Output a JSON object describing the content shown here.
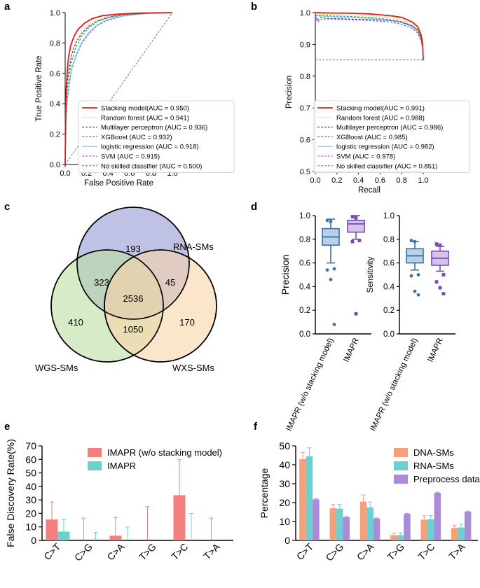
{
  "chart_data": [
    {
      "panel": "a",
      "type": "line",
      "xlabel": "False Positive Rate",
      "ylabel": "True Positive Rate",
      "xlim": [
        0,
        1
      ],
      "ylim": [
        0,
        1
      ],
      "xticks": [
        "0.0",
        "0.2",
        "0.4",
        "0.6",
        "0.8",
        "1.0"
      ],
      "yticks": [
        "0.0",
        "0.2",
        "0.4",
        "0.6",
        "0.8",
        "1.0"
      ],
      "legend_position": "lower-right",
      "series": [
        {
          "name": "Stacking model(AUC = 0.950)",
          "color": "#e41a1c",
          "style": "solid",
          "x": [
            0,
            0.005,
            0.01,
            0.02,
            0.03,
            0.05,
            0.08,
            0.12,
            0.18,
            0.25,
            0.35,
            0.5,
            0.7,
            1
          ],
          "y": [
            0,
            0.35,
            0.5,
            0.62,
            0.7,
            0.78,
            0.84,
            0.89,
            0.93,
            0.96,
            0.98,
            0.99,
            0.997,
            1
          ]
        },
        {
          "name": "Random forest (AUC = 0.941)",
          "color": "#e6c229",
          "style": "dotted",
          "x": [
            0,
            0.005,
            0.01,
            0.02,
            0.04,
            0.06,
            0.1,
            0.15,
            0.22,
            0.3,
            0.4,
            0.55,
            0.75,
            1
          ],
          "y": [
            0,
            0.3,
            0.45,
            0.57,
            0.66,
            0.74,
            0.81,
            0.87,
            0.92,
            0.95,
            0.975,
            0.99,
            0.997,
            1
          ]
        },
        {
          "name": "Multilayer perceptron (AUC = 0.936)",
          "color": "#2c2cc8",
          "style": "dashed",
          "x": [
            0,
            0.005,
            0.01,
            0.02,
            0.04,
            0.06,
            0.1,
            0.15,
            0.22,
            0.3,
            0.4,
            0.55,
            0.75,
            1
          ],
          "y": [
            0,
            0.28,
            0.42,
            0.55,
            0.64,
            0.72,
            0.8,
            0.86,
            0.91,
            0.945,
            0.97,
            0.988,
            0.996,
            1
          ]
        },
        {
          "name": "XGBoost (AUC = 0.932)",
          "color": "#2ca02c",
          "style": "dashed",
          "x": [
            0,
            0.005,
            0.01,
            0.02,
            0.04,
            0.06,
            0.1,
            0.15,
            0.22,
            0.3,
            0.4,
            0.55,
            0.75,
            1
          ],
          "y": [
            0,
            0.25,
            0.38,
            0.5,
            0.6,
            0.68,
            0.77,
            0.84,
            0.9,
            0.94,
            0.965,
            0.985,
            0.995,
            1
          ]
        },
        {
          "name": "logistic regression (AUC = 0.918)",
          "color": "#5fd3f3",
          "style": "solid",
          "x": [
            0,
            0.005,
            0.01,
            0.02,
            0.04,
            0.06,
            0.1,
            0.15,
            0.22,
            0.3,
            0.4,
            0.55,
            0.75,
            1
          ],
          "y": [
            0,
            0.2,
            0.32,
            0.44,
            0.55,
            0.63,
            0.72,
            0.8,
            0.87,
            0.92,
            0.955,
            0.98,
            0.994,
            1
          ]
        },
        {
          "name": "SVM (AUC = 0.915)",
          "color": "#c040c0",
          "style": "dashed",
          "x": [
            0,
            0.005,
            0.01,
            0.02,
            0.04,
            0.06,
            0.1,
            0.15,
            0.22,
            0.3,
            0.4,
            0.55,
            0.75,
            1
          ],
          "y": [
            0,
            0.18,
            0.3,
            0.42,
            0.53,
            0.62,
            0.71,
            0.79,
            0.86,
            0.915,
            0.95,
            0.978,
            0.993,
            1
          ]
        },
        {
          "name": "No skilled classifier (AUC = 0.500)",
          "color": "#808080",
          "style": "dashed",
          "x": [
            0,
            1
          ],
          "y": [
            0,
            1
          ]
        }
      ]
    },
    {
      "panel": "b",
      "type": "line",
      "xlabel": "Recall",
      "ylabel": "Precision",
      "xlim": [
        0,
        1
      ],
      "ylim": [
        0.5,
        1
      ],
      "xticks": [
        "0.0",
        "0.2",
        "0.4",
        "0.6",
        "0.8",
        "1.0"
      ],
      "yticks": [
        "0.5",
        "0.6",
        "0.7",
        "0.8",
        "0.9",
        "1.0"
      ],
      "legend_position": "lower-right",
      "series": [
        {
          "name": "Stacking model(AUC = 0.991)",
          "color": "#e41a1c",
          "style": "solid",
          "x": [
            0,
            0.1,
            0.3,
            0.5,
            0.7,
            0.8,
            0.9,
            0.95,
            0.98,
            0.995,
            1
          ],
          "y": [
            1,
            0.999,
            0.998,
            0.996,
            0.99,
            0.985,
            0.97,
            0.955,
            0.93,
            0.9,
            0.85
          ]
        },
        {
          "name": "Random forest (AUC = 0.988)",
          "color": "#e6c229",
          "style": "dotted",
          "x": [
            0,
            0.1,
            0.3,
            0.5,
            0.7,
            0.8,
            0.9,
            0.95,
            0.98,
            0.995,
            1
          ],
          "y": [
            0.995,
            0.994,
            0.993,
            0.99,
            0.985,
            0.978,
            0.963,
            0.948,
            0.925,
            0.895,
            0.85
          ]
        },
        {
          "name": "Multilayer perceptron (AUC = 0.986)",
          "color": "#2c2cc8",
          "style": "dashed",
          "x": [
            0,
            0.02,
            0.05,
            0.1,
            0.3,
            0.5,
            0.7,
            0.8,
            0.9,
            0.95,
            0.98,
            0.995,
            1
          ],
          "y": [
            0.995,
            0.975,
            0.985,
            0.982,
            0.98,
            0.978,
            0.975,
            0.97,
            0.958,
            0.945,
            0.92,
            0.89,
            0.85
          ]
        },
        {
          "name": "XGBoost (AUC = 0.985)",
          "color": "#2ca02c",
          "style": "dashed",
          "x": [
            0,
            0.1,
            0.3,
            0.5,
            0.7,
            0.8,
            0.9,
            0.95,
            0.98,
            0.995,
            1
          ],
          "y": [
            0.99,
            0.99,
            0.988,
            0.985,
            0.978,
            0.972,
            0.958,
            0.942,
            0.918,
            0.89,
            0.85
          ]
        },
        {
          "name": "logistic regression (AUC = 0.982)",
          "color": "#5fd3f3",
          "style": "solid",
          "x": [
            0,
            0.1,
            0.3,
            0.5,
            0.7,
            0.8,
            0.9,
            0.95,
            0.98,
            0.995,
            1
          ],
          "y": [
            0.99,
            0.988,
            0.985,
            0.982,
            0.975,
            0.968,
            0.955,
            0.94,
            0.915,
            0.888,
            0.85
          ]
        },
        {
          "name": "SVM (AUC = 0.978)",
          "color": "#c040c0",
          "style": "dashed",
          "x": [
            0,
            0.02,
            0.05,
            0.1,
            0.3,
            0.5,
            0.7,
            0.8,
            0.9,
            0.95,
            0.98,
            0.995,
            1
          ],
          "y": [
            0.99,
            0.97,
            0.978,
            0.98,
            0.978,
            0.975,
            0.97,
            0.963,
            0.95,
            0.935,
            0.91,
            0.885,
            0.85
          ]
        },
        {
          "name": "No skilled classifier (AUC = 0.851)",
          "color": "#808080",
          "style": "dashed",
          "x": [
            0,
            1
          ],
          "y": [
            0.851,
            0.851
          ]
        }
      ]
    },
    {
      "panel": "c",
      "type": "venn",
      "sets": [
        {
          "name": "RNA-SMs",
          "color": "#b4b6e0"
        },
        {
          "name": "WGS-SMs",
          "color": "#bde0a0"
        },
        {
          "name": "WXS-SMs",
          "color": "#f8d4a8"
        }
      ],
      "regions": {
        "rna_only": "193",
        "wgs_only": "410",
        "wxs_only": "170",
        "rna_wgs": "323",
        "rna_wxs": "45",
        "wgs_wxs": "1050",
        "all": "2536"
      }
    },
    {
      "panel": "d",
      "type": "box",
      "ylim": [
        0,
        1
      ],
      "yticks": [
        "0.0",
        "0.2",
        "0.4",
        "0.6",
        "0.8",
        "1.0"
      ],
      "subplots": [
        {
          "ylabel": "Precision",
          "boxes": [
            {
              "label": "IMAPR (w/o stacking model)",
              "color": "#3a6fb0",
              "fill": "#b8d0e8",
              "whisker_low": 0.6,
              "q1": 0.75,
              "median": 0.82,
              "q3": 0.89,
              "whisker_high": 0.97,
              "outliers": [
                0.96,
                0.95,
                0.55,
                0.54,
                0.46,
                0.08
              ]
            },
            {
              "label": "IMAPR",
              "color": "#7a4ab0",
              "fill": "#d4c4ea",
              "whisker_low": 0.8,
              "q1": 0.86,
              "median": 0.93,
              "q3": 0.96,
              "whisker_high": 1.0,
              "outliers": [
                0.99,
                0.98,
                0.79,
                0.78,
                0.17
              ]
            }
          ]
        },
        {
          "ylabel": "Sensitivity",
          "boxes": [
            {
              "label": "IMAPR (w/o stacking model)",
              "color": "#3a6fb0",
              "fill": "#b8d0e8",
              "whisker_low": 0.54,
              "q1": 0.6,
              "median": 0.66,
              "q3": 0.72,
              "whisker_high": 0.78,
              "outliers": [
                0.79,
                0.78,
                0.5,
                0.49,
                0.36,
                0.33
              ]
            },
            {
              "label": "IMAPR",
              "color": "#7a4ab0",
              "fill": "#d4c4ea",
              "whisker_low": 0.53,
              "q1": 0.58,
              "median": 0.64,
              "q3": 0.7,
              "whisker_high": 0.74,
              "outliers": [
                0.76,
                0.75,
                0.5,
                0.44,
                0.39,
                0.34
              ]
            }
          ]
        }
      ]
    },
    {
      "panel": "e",
      "type": "bar",
      "ylabel": "False Discovery Rate(%)",
      "ylim": [
        0,
        70
      ],
      "yticks": [
        "0",
        "10",
        "20",
        "30",
        "40",
        "50",
        "60",
        "70"
      ],
      "categories": [
        "C>T",
        "C>G",
        "C>A",
        "T>G",
        "T>C",
        "T>A"
      ],
      "legend_position": "top-right",
      "series": [
        {
          "name": "IMAPR (w/o stacking model)",
          "color": "#f47f7f",
          "values": [
            15.5,
            0,
            3.5,
            0,
            33.5,
            0
          ],
          "errors": [
            13,
            16.5,
            13.5,
            25,
            26.5,
            16.5
          ]
        },
        {
          "name": "IMAPR",
          "color": "#6dd0d0",
          "values": [
            6.5,
            0,
            0,
            0,
            0,
            0
          ],
          "errors": [
            9,
            6,
            10,
            0,
            20,
            0
          ]
        }
      ]
    },
    {
      "panel": "f",
      "type": "bar",
      "ylabel": "Percentage",
      "ylim": [
        0,
        50
      ],
      "yticks": [
        "0",
        "10",
        "20",
        "30",
        "40",
        "50"
      ],
      "categories": [
        "C>T",
        "C>G",
        "C>A",
        "T>G",
        "T>C",
        "T>A"
      ],
      "legend_position": "top-right",
      "series": [
        {
          "name": "DNA-SMs",
          "color": "#f4a07a",
          "values": [
            43,
            17,
            20.5,
            2.8,
            11,
            6.5
          ],
          "errors": [
            3.5,
            2,
            3.5,
            1,
            2,
            1.5
          ]
        },
        {
          "name": "RNA-SMs",
          "color": "#6dd0d0",
          "values": [
            44.5,
            16.8,
            17.5,
            2.8,
            11.2,
            6.8
          ],
          "errors": [
            4.5,
            2.2,
            2.8,
            1.2,
            2,
            1.8
          ]
        },
        {
          "name": "Preprocess data",
          "color": "#a98bd8",
          "values": [
            21.7,
            12.3,
            11.6,
            14,
            25.2,
            15.2
          ],
          "errors": [
            0.3,
            0.3,
            0.3,
            0.3,
            0.3,
            0.3
          ]
        }
      ]
    }
  ],
  "panel_labels": [
    "a",
    "b",
    "c",
    "d",
    "e",
    "f"
  ]
}
